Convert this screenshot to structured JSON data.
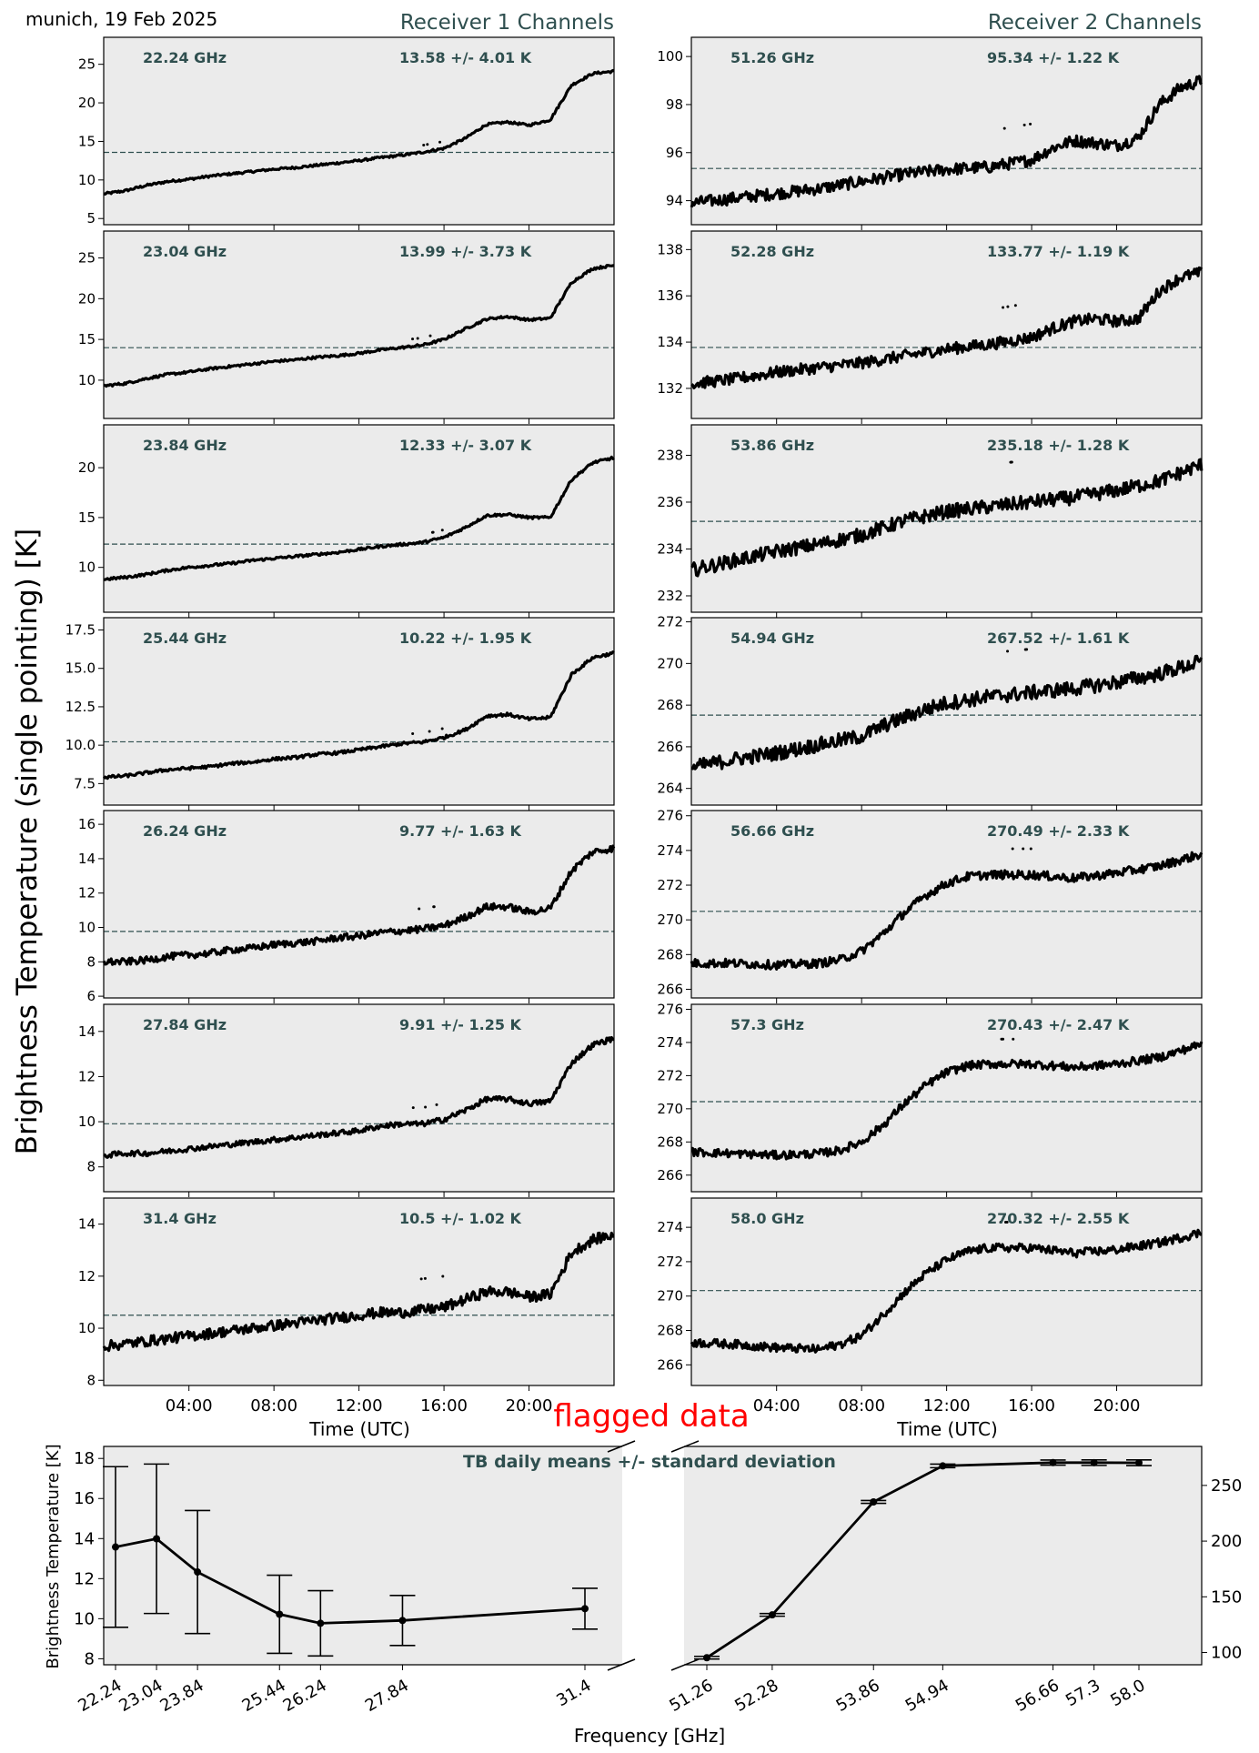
{
  "header": {
    "location_date": "munich, 19 Feb 2025",
    "receiver1_title": "Receiver 1 Channels",
    "receiver2_title": "Receiver 2 Channels",
    "ylabel": "Brightness Temperature (single pointing) [K]",
    "xlabel": "Time (UTC)",
    "time_ticks": [
      "04:00",
      "08:00",
      "12:00",
      "16:00",
      "20:00"
    ],
    "flagged_label": "flagged data"
  },
  "colors": {
    "panel_bg": "#ebebeb",
    "label_text": "#2f4f4f",
    "data": "#000000",
    "flagged": "#ff0000"
  },
  "chart_data": [
    {
      "type": "scatter",
      "receiver": 1,
      "frequency": "22.24 GHz",
      "stat": "13.58 +/- 4.01 K",
      "mean": 13.58,
      "std": 4.01,
      "ylim": [
        4.2,
        28.5
      ],
      "yticks": [
        5,
        10,
        15,
        20,
        25
      ],
      "ytick_labels": [
        "5",
        "10",
        "15",
        "20",
        "25"
      ],
      "series_hours": [
        0,
        1,
        2,
        3,
        4,
        5,
        6,
        7,
        8,
        9,
        10,
        11,
        12,
        13,
        14,
        15,
        16,
        17,
        18,
        19,
        20,
        21,
        22,
        23,
        24
      ],
      "series_values": [
        8.2,
        8.6,
        9.3,
        9.8,
        10.1,
        10.5,
        10.8,
        11.1,
        11.4,
        11.6,
        11.9,
        12.2,
        12.5,
        12.9,
        13.2,
        13.6,
        14.1,
        15.4,
        17.2,
        17.5,
        17.1,
        17.8,
        22.3,
        23.8,
        24.1
      ],
      "noise": 0.15
    },
    {
      "type": "scatter",
      "receiver": 2,
      "frequency": "51.26 GHz",
      "stat": "95.34 +/- 1.22 K",
      "mean": 95.34,
      "std": 1.22,
      "ylim": [
        93.0,
        100.8
      ],
      "yticks": [
        94,
        96,
        98,
        100
      ],
      "ytick_labels": [
        "94",
        "96",
        "98",
        "100"
      ],
      "series_hours": [
        0,
        2,
        4,
        6,
        8,
        10,
        12,
        14,
        16,
        17,
        18,
        19,
        20,
        21,
        22,
        23,
        24
      ],
      "series_values": [
        93.9,
        94.1,
        94.3,
        94.5,
        94.8,
        95.1,
        95.3,
        95.4,
        95.7,
        96.2,
        96.5,
        96.4,
        96.3,
        96.6,
        98.0,
        98.7,
        99.0
      ],
      "noise": 0.25
    },
    {
      "type": "scatter",
      "receiver": 1,
      "frequency": "23.04 GHz",
      "stat": "13.99 +/- 3.73 K",
      "mean": 13.99,
      "std": 3.73,
      "ylim": [
        5.3,
        28.3
      ],
      "yticks": [
        10,
        15,
        20,
        25
      ],
      "ytick_labels": [
        "10",
        "15",
        "20",
        "25"
      ],
      "series_hours": [
        0,
        1,
        2,
        3,
        4,
        5,
        6,
        7,
        8,
        9,
        10,
        11,
        12,
        13,
        14,
        15,
        16,
        17,
        18,
        19,
        20,
        21,
        22,
        23,
        24
      ],
      "series_values": [
        9.3,
        9.6,
        10.2,
        10.7,
        11.0,
        11.4,
        11.7,
        12.0,
        12.3,
        12.5,
        12.8,
        13.0,
        13.3,
        13.7,
        14.0,
        14.3,
        15.0,
        16.3,
        17.5,
        17.8,
        17.4,
        17.6,
        22.0,
        23.7,
        24.1
      ],
      "noise": 0.15
    },
    {
      "type": "scatter",
      "receiver": 2,
      "frequency": "52.28 GHz",
      "stat": "133.77 +/- 1.19 K",
      "mean": 133.77,
      "std": 1.19,
      "ylim": [
        130.7,
        138.8
      ],
      "yticks": [
        132,
        134,
        136,
        138
      ],
      "ytick_labels": [
        "132",
        "134",
        "136",
        "138"
      ],
      "series_hours": [
        0,
        2,
        4,
        6,
        8,
        10,
        12,
        14,
        16,
        17,
        18,
        19,
        20,
        21,
        22,
        23,
        24
      ],
      "series_values": [
        132.2,
        132.4,
        132.7,
        132.9,
        133.1,
        133.4,
        133.7,
        133.9,
        134.2,
        134.6,
        134.9,
        135.0,
        134.9,
        135.0,
        136.2,
        136.8,
        137.0
      ],
      "noise": 0.25
    },
    {
      "type": "scatter",
      "receiver": 1,
      "frequency": "23.84 GHz",
      "stat": "12.33 +/- 3.07 K",
      "mean": 12.33,
      "std": 3.07,
      "ylim": [
        5.5,
        24.3
      ],
      "yticks": [
        10,
        15,
        20
      ],
      "ytick_labels": [
        "10",
        "15",
        "20"
      ],
      "series_hours": [
        0,
        1,
        2,
        3,
        4,
        5,
        6,
        7,
        8,
        9,
        10,
        11,
        12,
        13,
        14,
        15,
        16,
        17,
        18,
        19,
        20,
        21,
        22,
        23,
        24
      ],
      "series_values": [
        8.8,
        9.0,
        9.3,
        9.7,
        10.0,
        10.2,
        10.4,
        10.7,
        10.9,
        11.1,
        11.3,
        11.5,
        11.8,
        12.1,
        12.3,
        12.5,
        13.0,
        14.0,
        15.2,
        15.3,
        15.0,
        15.0,
        18.8,
        20.5,
        21.0
      ],
      "noise": 0.13
    },
    {
      "type": "scatter",
      "receiver": 2,
      "frequency": "53.86 GHz",
      "stat": "235.18 +/- 1.28 K",
      "mean": 235.18,
      "std": 1.28,
      "ylim": [
        231.3,
        239.3
      ],
      "yticks": [
        232,
        234,
        236,
        238
      ],
      "ytick_labels": [
        "232",
        "234",
        "236",
        "238"
      ],
      "series_hours": [
        0,
        2,
        4,
        6,
        8,
        10,
        12,
        14,
        16,
        18,
        20,
        22,
        24
      ],
      "series_values": [
        233.1,
        233.5,
        233.9,
        234.2,
        234.6,
        235.2,
        235.6,
        235.8,
        236.0,
        236.2,
        236.5,
        236.9,
        237.6
      ],
      "noise": 0.3
    },
    {
      "type": "scatter",
      "receiver": 1,
      "frequency": "25.44 GHz",
      "stat": "10.22 +/- 1.95 K",
      "mean": 10.22,
      "std": 1.95,
      "ylim": [
        6.1,
        18.3
      ],
      "yticks": [
        7.5,
        10.0,
        12.5,
        15.0,
        17.5
      ],
      "ytick_labels": [
        "7.5",
        "10.0",
        "12.5",
        "15.0",
        "17.5"
      ],
      "series_hours": [
        0,
        1,
        2,
        3,
        4,
        5,
        6,
        7,
        8,
        9,
        10,
        11,
        12,
        13,
        14,
        15,
        16,
        17,
        18,
        19,
        20,
        21,
        22,
        23,
        24
      ],
      "series_values": [
        7.9,
        8.0,
        8.2,
        8.4,
        8.5,
        8.6,
        8.8,
        8.9,
        9.1,
        9.2,
        9.4,
        9.5,
        9.7,
        9.9,
        10.1,
        10.2,
        10.5,
        11.0,
        11.9,
        12.0,
        11.7,
        11.8,
        14.6,
        15.7,
        16.0
      ],
      "noise": 0.1
    },
    {
      "type": "scatter",
      "receiver": 2,
      "frequency": "54.94 GHz",
      "stat": "267.52 +/- 1.61 K",
      "mean": 267.52,
      "std": 1.61,
      "ylim": [
        263.2,
        272.2
      ],
      "yticks": [
        264,
        266,
        268,
        270,
        272
      ],
      "ytick_labels": [
        "264",
        "266",
        "268",
        "270",
        "272"
      ],
      "series_hours": [
        0,
        2,
        4,
        6,
        8,
        9,
        10,
        11,
        12,
        14,
        16,
        18,
        20,
        22,
        24
      ],
      "series_values": [
        265.0,
        265.4,
        265.7,
        266.1,
        266.5,
        267.0,
        267.4,
        267.8,
        268.1,
        268.4,
        268.6,
        268.8,
        269.1,
        269.5,
        270.1
      ],
      "noise": 0.35
    },
    {
      "type": "scatter",
      "receiver": 1,
      "frequency": "26.24 GHz",
      "stat": "9.77 +/- 1.63 K",
      "mean": 9.77,
      "std": 1.63,
      "ylim": [
        5.9,
        16.8
      ],
      "yticks": [
        6,
        8,
        10,
        12,
        14,
        16
      ],
      "ytick_labels": [
        "6",
        "8",
        "10",
        "12",
        "14",
        "16"
      ],
      "series_hours": [
        0,
        1,
        2,
        3,
        4,
        5,
        6,
        7,
        8,
        9,
        10,
        11,
        12,
        13,
        14,
        15,
        16,
        17,
        18,
        19,
        20,
        21,
        22,
        23,
        24
      ],
      "series_values": [
        8.0,
        8.0,
        8.1,
        8.3,
        8.4,
        8.5,
        8.7,
        8.8,
        9.0,
        9.1,
        9.2,
        9.4,
        9.5,
        9.7,
        9.8,
        9.9,
        10.1,
        10.6,
        11.2,
        11.2,
        10.9,
        11.1,
        13.3,
        14.4,
        14.6
      ],
      "noise": 0.2
    },
    {
      "type": "scatter",
      "receiver": 2,
      "frequency": "56.66 GHz",
      "stat": "270.49 +/- 2.33 K",
      "mean": 270.49,
      "std": 2.33,
      "ylim": [
        265.5,
        276.3
      ],
      "yticks": [
        266,
        268,
        270,
        272,
        274,
        276
      ],
      "ytick_labels": [
        "266",
        "268",
        "270",
        "272",
        "274",
        "276"
      ],
      "series_hours": [
        0,
        2,
        4,
        6,
        7,
        8,
        9,
        10,
        11,
        12,
        13,
        14,
        16,
        18,
        20,
        22,
        24
      ],
      "series_values": [
        267.5,
        267.5,
        267.4,
        267.5,
        267.7,
        268.2,
        269.2,
        270.4,
        271.4,
        272.1,
        272.5,
        272.6,
        272.6,
        272.4,
        272.7,
        273.1,
        273.8
      ],
      "noise": 0.25
    },
    {
      "type": "scatter",
      "receiver": 1,
      "frequency": "27.84 GHz",
      "stat": "9.91 +/- 1.25 K",
      "mean": 9.91,
      "std": 1.25,
      "ylim": [
        6.9,
        15.2
      ],
      "yticks": [
        8,
        10,
        12,
        14
      ],
      "ytick_labels": [
        "8",
        "10",
        "12",
        "14"
      ],
      "series_hours": [
        0,
        1,
        2,
        3,
        4,
        5,
        6,
        7,
        8,
        9,
        10,
        11,
        12,
        13,
        14,
        15,
        16,
        17,
        18,
        19,
        20,
        21,
        22,
        23,
        24
      ],
      "series_values": [
        8.5,
        8.6,
        8.6,
        8.7,
        8.8,
        8.9,
        9.0,
        9.1,
        9.2,
        9.3,
        9.4,
        9.5,
        9.6,
        9.8,
        9.9,
        9.9,
        10.1,
        10.5,
        11.0,
        11.0,
        10.8,
        10.9,
        12.6,
        13.4,
        13.7
      ],
      "noise": 0.12
    },
    {
      "type": "scatter",
      "receiver": 2,
      "frequency": "57.3 GHz",
      "stat": "270.43 +/- 2.47 K",
      "mean": 270.43,
      "std": 2.47,
      "ylim": [
        265.0,
        276.3
      ],
      "yticks": [
        266,
        268,
        270,
        272,
        274,
        276
      ],
      "ytick_labels": [
        "266",
        "268",
        "270",
        "272",
        "274",
        "276"
      ],
      "series_hours": [
        0,
        2,
        4,
        6,
        7,
        8,
        9,
        10,
        11,
        12,
        13,
        14,
        16,
        18,
        20,
        22,
        24
      ],
      "series_values": [
        267.4,
        267.3,
        267.2,
        267.3,
        267.5,
        268.0,
        269.0,
        270.3,
        271.4,
        272.2,
        272.6,
        272.7,
        272.7,
        272.5,
        272.7,
        273.1,
        273.9
      ],
      "noise": 0.25
    },
    {
      "type": "scatter",
      "receiver": 1,
      "frequency": "31.4 GHz",
      "stat": "10.5 +/- 1.02 K",
      "mean": 10.5,
      "std": 1.02,
      "ylim": [
        7.8,
        15.0
      ],
      "yticks": [
        8,
        10,
        12,
        14
      ],
      "ytick_labels": [
        "8",
        "10",
        "12",
        "14"
      ],
      "series_hours": [
        0,
        1,
        2,
        3,
        4,
        5,
        6,
        7,
        8,
        9,
        10,
        11,
        12,
        13,
        14,
        15,
        16,
        17,
        18,
        19,
        20,
        21,
        22,
        23,
        24
      ],
      "series_values": [
        9.3,
        9.4,
        9.5,
        9.6,
        9.7,
        9.8,
        9.9,
        10.0,
        10.1,
        10.2,
        10.3,
        10.4,
        10.5,
        10.6,
        10.6,
        10.7,
        10.8,
        11.1,
        11.4,
        11.4,
        11.2,
        11.3,
        12.9,
        13.4,
        13.6
      ],
      "noise": 0.2
    },
    {
      "type": "scatter",
      "receiver": 2,
      "frequency": "58.0 GHz",
      "stat": "270.32 +/- 2.55 K",
      "mean": 270.32,
      "std": 2.55,
      "ylim": [
        264.8,
        275.7
      ],
      "yticks": [
        266,
        268,
        270,
        272,
        274
      ],
      "ytick_labels": [
        "266",
        "268",
        "270",
        "272",
        "274"
      ],
      "series_hours": [
        0,
        2,
        4,
        6,
        7,
        8,
        9,
        10,
        11,
        12,
        13,
        14,
        16,
        18,
        20,
        22,
        24
      ],
      "series_values": [
        267.3,
        267.2,
        267.0,
        266.9,
        267.2,
        267.7,
        268.9,
        270.2,
        271.3,
        272.1,
        272.6,
        272.8,
        272.8,
        272.5,
        272.7,
        273.1,
        273.7
      ],
      "noise": 0.25
    },
    {
      "type": "line",
      "title": "TB daily means +/- standard deviation",
      "xlabel": "Frequency [GHz]",
      "ylabel": "Brightness Temperature [K]",
      "receiver1": {
        "x": [
          22.24,
          23.04,
          23.84,
          25.44,
          26.24,
          27.84,
          31.4
        ],
        "x_labels": [
          "22.24",
          "23.04",
          "23.84",
          "25.44",
          "26.24",
          "27.84",
          "31.4"
        ],
        "means": [
          13.58,
          13.99,
          12.33,
          10.22,
          9.77,
          9.91,
          10.5
        ],
        "stds": [
          4.01,
          3.73,
          3.07,
          1.95,
          1.63,
          1.25,
          1.02
        ],
        "ylim": [
          7.7,
          18.6
        ],
        "yticks": [
          8,
          10,
          12,
          14,
          16,
          18
        ],
        "ytick_labels": [
          "8",
          "10",
          "12",
          "14",
          "16",
          "18"
        ]
      },
      "receiver2": {
        "x": [
          51.26,
          52.28,
          53.86,
          54.94,
          56.66,
          57.3,
          58.0
        ],
        "x_labels": [
          "51.26",
          "52.28",
          "53.86",
          "54.94",
          "56.66",
          "57.3",
          "58.0"
        ],
        "means": [
          95.34,
          133.77,
          235.18,
          267.52,
          270.49,
          270.43,
          270.32
        ],
        "stds": [
          1.22,
          1.19,
          1.28,
          1.61,
          2.33,
          2.47,
          2.55
        ],
        "ylim": [
          89,
          285
        ],
        "yticks": [
          100,
          150,
          200,
          250
        ],
        "ytick_labels": [
          "100",
          "150",
          "200",
          "250"
        ]
      }
    }
  ]
}
